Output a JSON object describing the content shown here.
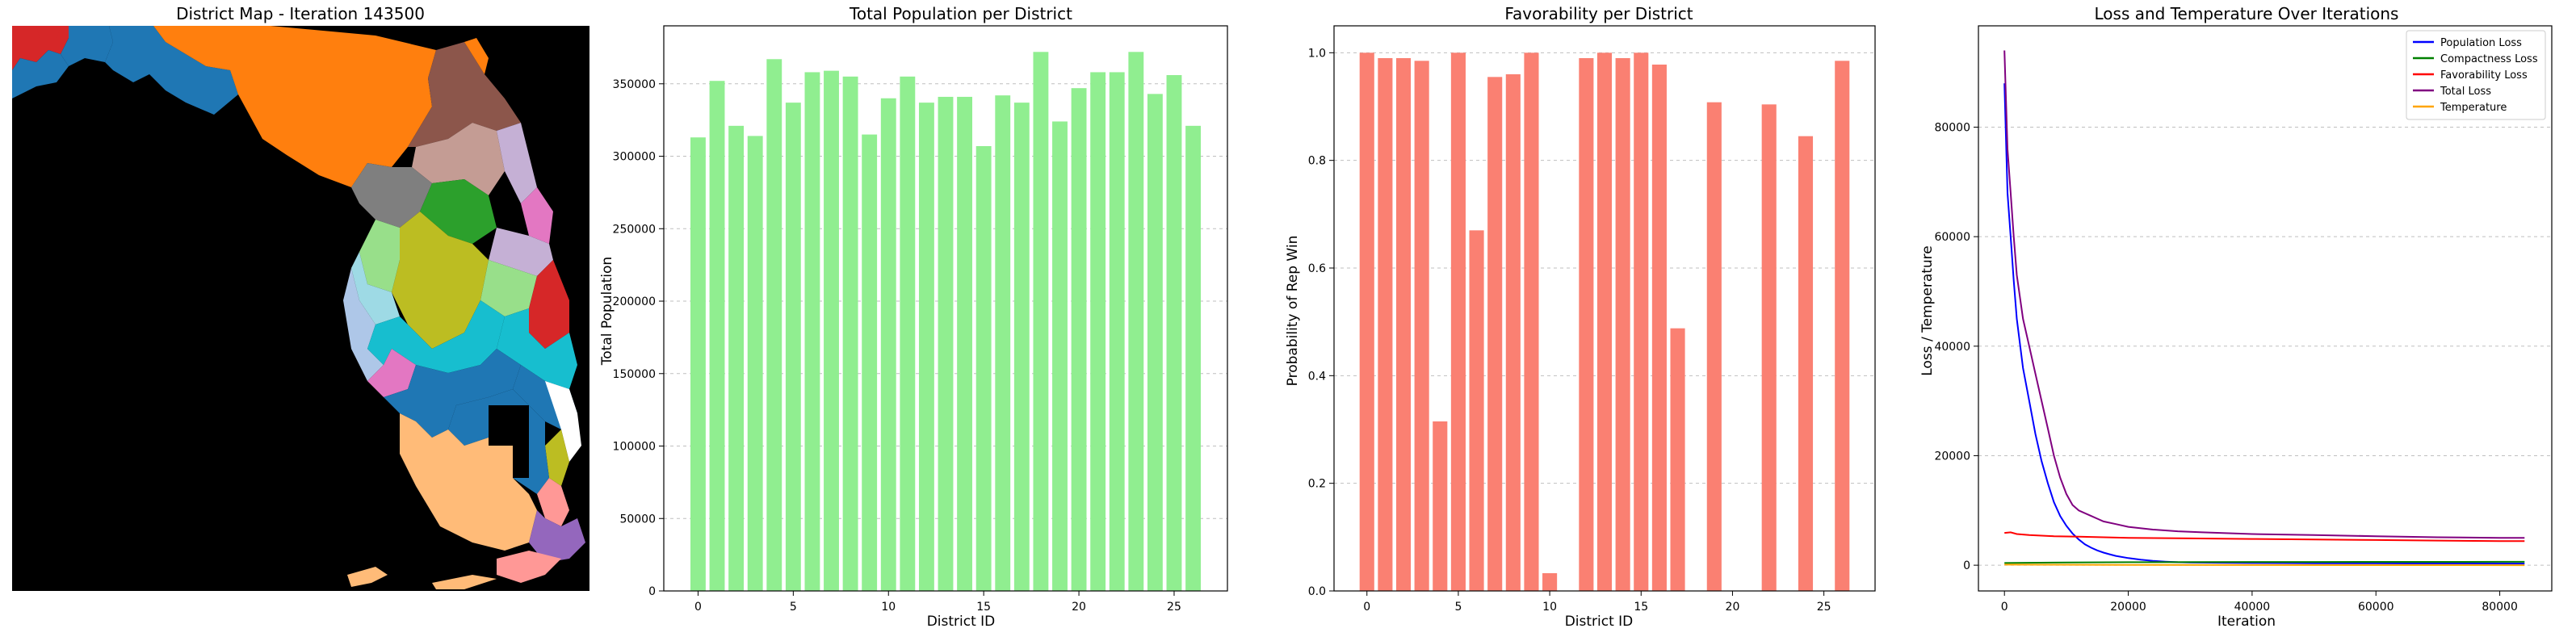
{
  "map_panel": {
    "title": "District Map - Iteration 143500"
  },
  "chart_data": [
    {
      "type": "bar",
      "title": "Total Population per District",
      "xlabel": "District ID",
      "ylabel": "Total Population",
      "color": "#90ee90",
      "x": [
        0,
        1,
        2,
        3,
        4,
        5,
        6,
        7,
        8,
        9,
        10,
        11,
        12,
        13,
        14,
        15,
        16,
        17,
        18,
        19,
        20,
        21,
        22,
        23,
        24,
        25,
        26
      ],
      "values": [
        313000,
        352000,
        321000,
        314000,
        367000,
        337000,
        358000,
        359000,
        355000,
        315000,
        340000,
        355000,
        337000,
        341000,
        341000,
        307000,
        342000,
        337000,
        372000,
        324000,
        347000,
        358000,
        358000,
        372000,
        343000,
        356000,
        321000
      ],
      "xlim": [
        -1.8,
        27.8
      ],
      "ylim": [
        0,
        390000
      ],
      "xticks": [
        0,
        5,
        10,
        15,
        20,
        25
      ],
      "yticks": [
        0,
        50000,
        100000,
        150000,
        200000,
        250000,
        300000,
        350000
      ],
      "grid": "y"
    },
    {
      "type": "bar",
      "title": "Favorability per District",
      "xlabel": "District ID",
      "ylabel": "Probability of Rep Win",
      "color": "#fa8072",
      "x": [
        0,
        1,
        2,
        3,
        4,
        5,
        6,
        7,
        8,
        9,
        10,
        11,
        12,
        13,
        14,
        15,
        16,
        17,
        18,
        19,
        20,
        21,
        22,
        23,
        24,
        25,
        26
      ],
      "values": [
        1.0,
        0.99,
        0.99,
        0.985,
        0.315,
        1.0,
        0.67,
        0.955,
        0.96,
        1.0,
        0.033,
        0.0,
        0.99,
        1.0,
        0.99,
        1.0,
        0.978,
        0.488,
        0.0,
        0.908,
        0.0,
        0.0,
        0.904,
        0.0,
        0.845,
        0.0,
        0.985
      ],
      "xlim": [
        -1.8,
        27.8
      ],
      "ylim": [
        0,
        1.05
      ],
      "xticks": [
        0,
        5,
        10,
        15,
        20,
        25
      ],
      "yticks": [
        0.0,
        0.2,
        0.4,
        0.6,
        0.8,
        1.0
      ],
      "ytick_labels": [
        "0.0",
        "0.2",
        "0.4",
        "0.6",
        "0.8",
        "1.0"
      ],
      "grid": "y"
    },
    {
      "type": "line",
      "title": "Loss and Temperature Over Iterations",
      "xlabel": "Iteration",
      "ylabel": "Loss / Temperature",
      "xlim": [
        -4200,
        88400
      ],
      "ylim": [
        -4700,
        98500
      ],
      "xticks": [
        0,
        20000,
        40000,
        60000,
        80000
      ],
      "yticks": [
        0,
        20000,
        40000,
        60000,
        80000
      ],
      "grid": "y",
      "legend": "top-right",
      "series": [
        {
          "name": "Population Loss",
          "color": "#0000ff",
          "points": [
            [
              0,
              88000
            ],
            [
              500,
              68000
            ],
            [
              1000,
              60000
            ],
            [
              1500,
              52000
            ],
            [
              2000,
              45000
            ],
            [
              3000,
              36000
            ],
            [
              4000,
              30000
            ],
            [
              5000,
              24000
            ],
            [
              6000,
              19000
            ],
            [
              7000,
              15000
            ],
            [
              8000,
              11500
            ],
            [
              9000,
              9000
            ],
            [
              10000,
              7200
            ],
            [
              11000,
              5800
            ],
            [
              12000,
              4700
            ],
            [
              13000,
              3800
            ],
            [
              14000,
              3200
            ],
            [
              15000,
              2700
            ],
            [
              16000,
              2300
            ],
            [
              17000,
              2000
            ],
            [
              18000,
              1700
            ],
            [
              20000,
              1300
            ],
            [
              22000,
              1000
            ],
            [
              24000,
              800
            ],
            [
              26000,
              650
            ],
            [
              28000,
              550
            ],
            [
              30000,
              500
            ],
            [
              35000,
              450
            ],
            [
              40000,
              400
            ],
            [
              45000,
              380
            ],
            [
              50000,
              360
            ],
            [
              55000,
              350
            ],
            [
              60000,
              340
            ],
            [
              65000,
              330
            ],
            [
              70000,
              320
            ],
            [
              75000,
              320
            ],
            [
              80000,
              310
            ],
            [
              84000,
              300
            ]
          ]
        },
        {
          "name": "Compactness Loss",
          "color": "#008000",
          "points": [
            [
              0,
              400
            ],
            [
              10000,
              500
            ],
            [
              20000,
              550
            ],
            [
              30000,
              580
            ],
            [
              40000,
              600
            ],
            [
              50000,
              600
            ],
            [
              60000,
              610
            ],
            [
              70000,
              610
            ],
            [
              80000,
              620
            ],
            [
              84000,
              620
            ]
          ]
        },
        {
          "name": "Favorability Loss",
          "color": "#ff0000",
          "points": [
            [
              0,
              5900
            ],
            [
              1000,
              6000
            ],
            [
              2000,
              5700
            ],
            [
              4000,
              5500
            ],
            [
              8000,
              5300
            ],
            [
              12000,
              5200
            ],
            [
              20000,
              5000
            ],
            [
              30000,
              4900
            ],
            [
              40000,
              4800
            ],
            [
              50000,
              4700
            ],
            [
              60000,
              4600
            ],
            [
              70000,
              4500
            ],
            [
              80000,
              4400
            ],
            [
              84000,
              4400
            ]
          ]
        },
        {
          "name": "Total Loss",
          "color": "#800080",
          "points": [
            [
              0,
              94000
            ],
            [
              500,
              76000
            ],
            [
              1000,
              68000
            ],
            [
              1500,
              60000
            ],
            [
              2000,
              53000
            ],
            [
              3000,
              45000
            ],
            [
              4000,
              40000
            ],
            [
              5000,
              35000
            ],
            [
              6000,
              30000
            ],
            [
              7000,
              25000
            ],
            [
              8000,
              20000
            ],
            [
              9000,
              16000
            ],
            [
              10000,
              13000
            ],
            [
              11000,
              11000
            ],
            [
              12000,
              10000
            ],
            [
              14000,
              9000
            ],
            [
              15000,
              8500
            ],
            [
              16000,
              8000
            ],
            [
              18000,
              7500
            ],
            [
              20000,
              7000
            ],
            [
              24000,
              6500
            ],
            [
              28000,
              6200
            ],
            [
              32000,
              6000
            ],
            [
              40000,
              5700
            ],
            [
              50000,
              5500
            ],
            [
              60000,
              5300
            ],
            [
              70000,
              5100
            ],
            [
              80000,
              5000
            ],
            [
              84000,
              5000
            ]
          ]
        },
        {
          "name": "Temperature",
          "color": "#ffa500",
          "points": [
            [
              0,
              100
            ],
            [
              20000,
              60
            ],
            [
              40000,
              30
            ],
            [
              60000,
              15
            ],
            [
              84000,
              5
            ]
          ]
        }
      ]
    }
  ]
}
